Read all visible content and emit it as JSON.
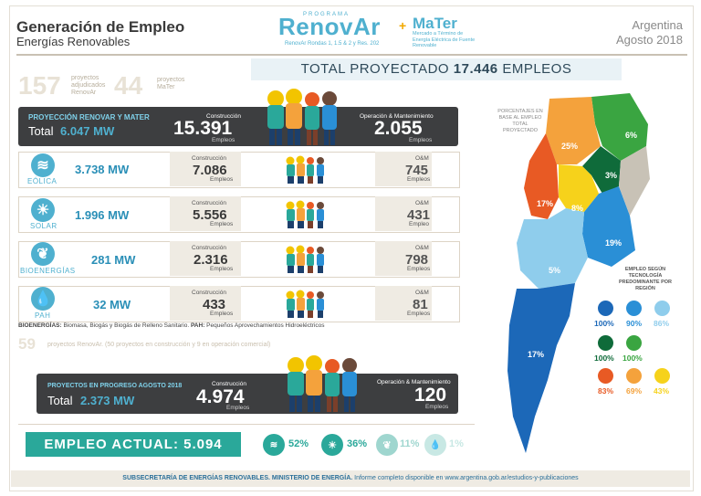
{
  "header": {
    "title": "Generación de Empleo",
    "subtitle": "Energías Renovables",
    "renovar_top": "PROGRAMA",
    "renovar_logo": "RenovAr",
    "renovar_sub": "RenovAr Rondas 1, 1.5 & 2 y Res. 202",
    "plus": "+",
    "mater_logo": "MaTer",
    "mater_sub": "Mercado a Término de Energía Eléctrica de Fuente Renovable",
    "country": "Argentina",
    "period": "Agosto 2018"
  },
  "projects": {
    "renovar_count": "157",
    "renovar_text": "proyectos adjudicados RenovAr",
    "mater_count": "44",
    "mater_text": "proyectos MaTer"
  },
  "total_banner": {
    "label": "TOTAL PROYECTADO",
    "value": "17.446",
    "unit": "EMPLEOS"
  },
  "projection": {
    "label": "PROYECCIÓN RENOVAR Y MATER",
    "total_label": "Total",
    "total_value": "6.047 MW",
    "construction_label": "Construcción",
    "construction_value": "15.391",
    "construction_unit": "Empleos",
    "om_label": "Operación & Mantenimiento",
    "om_value": "2.055",
    "om_unit": "Empleos"
  },
  "technologies": [
    {
      "name": "EÓLICA",
      "mw": "3.738 MW",
      "constr_label": "Construcción",
      "constr_value": "7.086",
      "constr_unit": "Empleos",
      "om_label": "O&M",
      "om_value": "745",
      "om_unit": "Empleos",
      "icon": "wind-icon"
    },
    {
      "name": "SOLAR",
      "mw": "1.996 MW",
      "constr_label": "Construcción",
      "constr_value": "5.556",
      "constr_unit": "Empleos",
      "om_label": "O&M",
      "om_value": "431",
      "om_unit": "Empleo",
      "icon": "sun-icon"
    },
    {
      "name": "BIOENERGÍAS",
      "mw": "281 MW",
      "constr_label": "Construcción",
      "constr_value": "2.316",
      "constr_unit": "Empleos",
      "om_label": "O&M",
      "om_value": "798",
      "om_unit": "Empleos",
      "icon": "leaf-icon"
    },
    {
      "name": "PAH",
      "mw": "32 MW",
      "constr_label": "Construcción",
      "constr_value": "433",
      "constr_unit": "Empleos",
      "om_label": "O&M",
      "om_value": "81",
      "om_unit": "Empleos",
      "icon": "water-drop-icon"
    }
  ],
  "note": {
    "bio_label": "BIOENERGÍAS:",
    "bio_text": " Biomasa, Biogás y Biogás de Relleno Sanitario. ",
    "pah_label": "PAH:",
    "pah_text": " Pequeños Aprovechamientos Hidroeléctricos"
  },
  "progress_count": {
    "value": "59",
    "text": "proyectos RenovAr. (50 proyectos en construcción y 9 en operación comercial)"
  },
  "progress": {
    "label": "PROYECTOS EN PROGRESO AGOSTO 2018",
    "total_label": "Total",
    "total_value": "2.373 MW",
    "construction_label": "Construcción",
    "construction_value": "4.974",
    "construction_unit": "Empleos",
    "om_label": "Operación & Mantenimiento",
    "om_value": "120",
    "om_unit": "Empleos"
  },
  "actual": {
    "label": "EMPLEO ACTUAL: 5.094"
  },
  "actual_breakdown": [
    {
      "icon": "wind-icon",
      "pct": "52%",
      "color": "#2aa89a"
    },
    {
      "icon": "sun-icon",
      "pct": "36%",
      "color": "#2aa89a"
    },
    {
      "icon": "leaf-icon",
      "pct": "11%",
      "color": "#9fd6cf"
    },
    {
      "icon": "water-drop-icon",
      "pct": "1%",
      "color": "#c8e8e4"
    }
  ],
  "map": {
    "note": "PORCENTAJES EN BASE AL EMPLEO TOTAL PROYECTADO",
    "regions": [
      {
        "pct": "6%",
        "color": "#3aa541"
      },
      {
        "pct": "25%",
        "color": "#f4a23c"
      },
      {
        "pct": "3%",
        "color": "#0f6b3a"
      },
      {
        "pct": "17%",
        "color": "#e85a24"
      },
      {
        "pct": "8%",
        "color": "#f6d21b"
      },
      {
        "pct": "19%",
        "color": "#2a8fd6"
      },
      {
        "pct": "5%",
        "color": "#8fcdec"
      },
      {
        "pct": "17%",
        "color": "#1c68b8"
      }
    ],
    "legend_title": "EMPLEO SEGÚN TECNOLOGÍA PREDOMINANTE POR REGIÓN",
    "legend": [
      [
        {
          "pct": "100%",
          "color": "#1c68b8"
        },
        {
          "pct": "90%",
          "color": "#2a8fd6"
        },
        {
          "pct": "86%",
          "color": "#8fcdec"
        }
      ],
      [
        {
          "pct": "100%",
          "color": "#0f6b3a"
        },
        {
          "pct": "100%",
          "color": "#3aa541"
        }
      ],
      [
        {
          "pct": "83%",
          "color": "#e85a24"
        },
        {
          "pct": "69%",
          "color": "#f4a23c"
        },
        {
          "pct": "43%",
          "color": "#f6d21b"
        }
      ]
    ]
  },
  "footer": {
    "bold": "SUBSECRETARÍA DE ENERGÍAS RENOVABLES. MINISTERIO DE ENERGÍA.",
    "text": " Informe completo disponible en www.argentina.gob.ar/estudios-y-publicaciones"
  }
}
